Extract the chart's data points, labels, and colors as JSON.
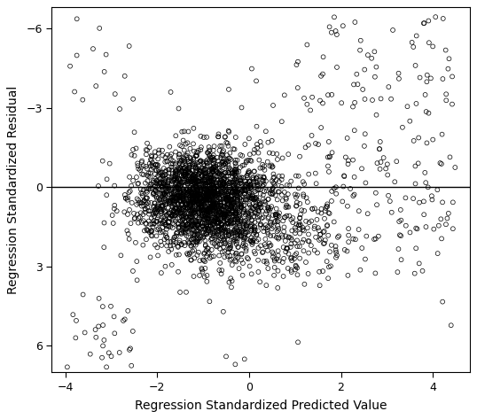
{
  "title": "",
  "xlabel": "Regression Standardized Predicted Value",
  "ylabel": "Regression Standardized Residual",
  "xlim": [
    -4.3,
    4.8
  ],
  "ylim": [
    7.0,
    -6.8
  ],
  "xticks": [
    -4,
    -2,
    0,
    2,
    4
  ],
  "yticks": [
    -6,
    -3,
    0,
    3,
    6
  ],
  "hline_y": 0,
  "n_points": 3000,
  "seed": 7,
  "background_color": "#ffffff",
  "marker_color": "#000000",
  "marker_facecolor": "none",
  "marker_size": 3.5,
  "marker_linewidth": 0.5,
  "axis_linewidth": 0.8,
  "hline_linewidth": 1.0,
  "figsize": [
    5.38,
    4.73
  ],
  "dpi": 100
}
